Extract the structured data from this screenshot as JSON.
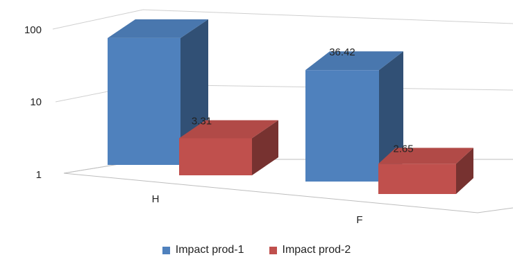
{
  "chart_data": {
    "type": "bar",
    "title": "",
    "xlabel": "",
    "ylabel": "",
    "y_scale": "log",
    "ylim": [
      1,
      100
    ],
    "yticks": [
      "1",
      "10",
      "100"
    ],
    "categories": [
      "H",
      "F"
    ],
    "series": [
      {
        "name": "Impact prod-1",
        "color": "#4F81BD",
        "values": [
          60,
          36.42
        ],
        "labels": [
          "",
          "36.42"
        ]
      },
      {
        "name": "Impact prod-2",
        "color": "#C0504D",
        "values": [
          3.31,
          2.65
        ],
        "labels": [
          "3.31",
          "2.65"
        ]
      }
    ],
    "style": "3d-clustered",
    "grid": true,
    "legend_position": "bottom"
  }
}
